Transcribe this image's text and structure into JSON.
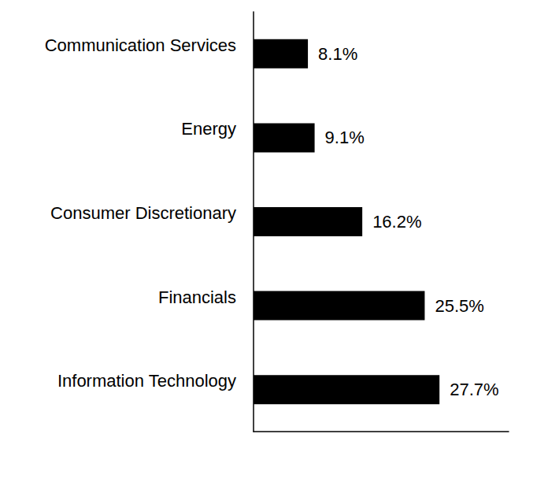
{
  "chart_data": {
    "type": "bar",
    "orientation": "horizontal",
    "categories": [
      "Communication Services",
      "Energy",
      "Consumer Discretionary",
      "Financials",
      "Information Technology"
    ],
    "values": [
      8.1,
      9.1,
      16.2,
      25.5,
      27.7
    ],
    "value_labels": [
      "8.1%",
      "9.1%",
      "16.2%",
      "25.5%",
      "27.7%"
    ],
    "color": "#000000",
    "xlim": [
      0,
      38
    ],
    "data_labels": true,
    "tick_labels": "y",
    "grid": false
  }
}
